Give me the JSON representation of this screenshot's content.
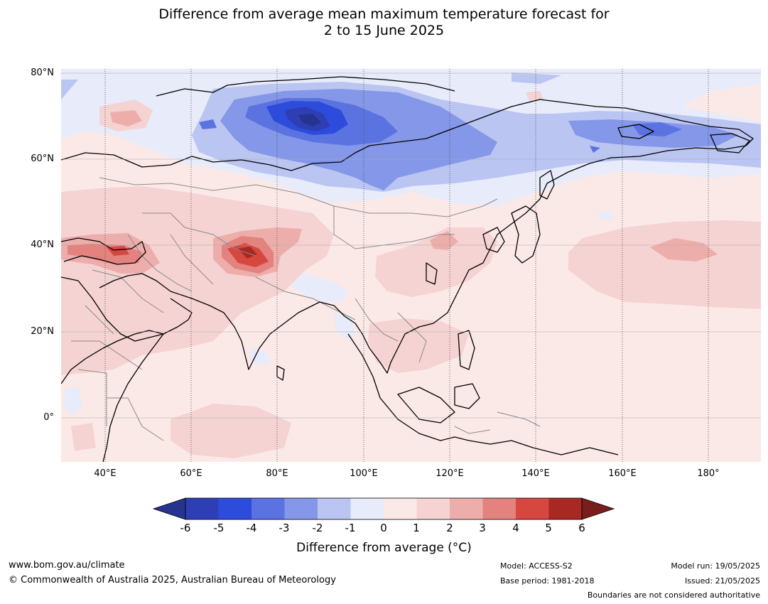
{
  "title": {
    "line1": "Difference from average mean maximum temperature forecast for",
    "line2": "2 to 15 June 2025"
  },
  "map": {
    "lat_labels": [
      "80°N",
      "60°N",
      "40°N",
      "20°N",
      "0°"
    ],
    "lon_labels": [
      "40°E",
      "60°E",
      "80°E",
      "100°E",
      "120°E",
      "140°E",
      "160°E",
      "180°"
    ],
    "extent": {
      "lon": [
        30,
        191
      ],
      "lat": [
        -10,
        80
      ]
    }
  },
  "colorbar": {
    "ticks": [
      "-6",
      "-5",
      "-4",
      "-3",
      "-2",
      "-1",
      "0",
      "1",
      "2",
      "3",
      "4",
      "5",
      "6"
    ],
    "colors": [
      "#26338f",
      "#2e3fb5",
      "#2d4cdc",
      "#5b73e1",
      "#8497e8",
      "#bac5f2",
      "#e7ebfa",
      "#fbe9e8",
      "#f5d3d2",
      "#edaeab",
      "#e4827f",
      "#d6473f",
      "#a82823",
      "#7a1e1c"
    ],
    "label": "Difference from average (°C)"
  },
  "footer": {
    "website": "www.bom.gov.au/climate",
    "copyright": "© Commonwealth of Australia 2025, Australian Bureau of Meteorology",
    "model": "Model: ACCESS-S2",
    "base_period": "Base period: 1981-2018",
    "model_run": "Model run: 19/05/2025",
    "issued": "Issued: 21/05/2025",
    "disclaimer": "Boundaries are not considered authoritative"
  }
}
